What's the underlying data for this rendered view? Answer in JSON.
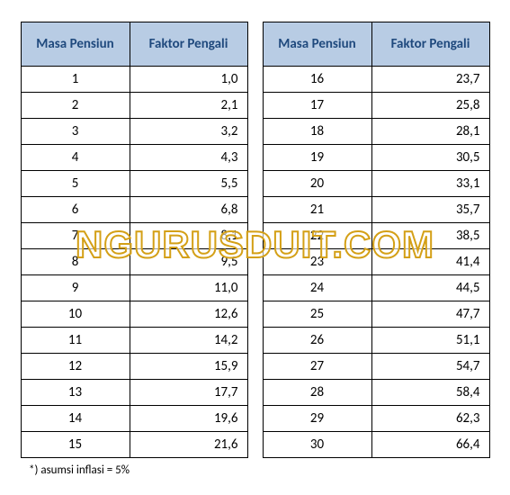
{
  "header": {
    "col1": "Masa Pensiun",
    "col2": "Faktor Pengali"
  },
  "table_left": {
    "rows": [
      {
        "masa": "1",
        "faktor": "1,0"
      },
      {
        "masa": "2",
        "faktor": "2,1"
      },
      {
        "masa": "3",
        "faktor": "3,2"
      },
      {
        "masa": "4",
        "faktor": "4,3"
      },
      {
        "masa": "5",
        "faktor": "5,5"
      },
      {
        "masa": "6",
        "faktor": "6,8"
      },
      {
        "masa": "7",
        "faktor": "8,1"
      },
      {
        "masa": "8",
        "faktor": "9,5"
      },
      {
        "masa": "9",
        "faktor": "11,0"
      },
      {
        "masa": "10",
        "faktor": "12,6"
      },
      {
        "masa": "11",
        "faktor": "14,2"
      },
      {
        "masa": "12",
        "faktor": "15,9"
      },
      {
        "masa": "13",
        "faktor": "17,7"
      },
      {
        "masa": "14",
        "faktor": "19,6"
      },
      {
        "masa": "15",
        "faktor": "21,6"
      }
    ]
  },
  "table_right": {
    "rows": [
      {
        "masa": "16",
        "faktor": "23,7"
      },
      {
        "masa": "17",
        "faktor": "25,8"
      },
      {
        "masa": "18",
        "faktor": "28,1"
      },
      {
        "masa": "19",
        "faktor": "30,5"
      },
      {
        "masa": "20",
        "faktor": "33,1"
      },
      {
        "masa": "21",
        "faktor": "35,7"
      },
      {
        "masa": "22",
        "faktor": "38,5"
      },
      {
        "masa": "23",
        "faktor": "41,4"
      },
      {
        "masa": "24",
        "faktor": "44,5"
      },
      {
        "masa": "25",
        "faktor": "47,7"
      },
      {
        "masa": "26",
        "faktor": "51,1"
      },
      {
        "masa": "27",
        "faktor": "54,7"
      },
      {
        "masa": "28",
        "faktor": "58,4"
      },
      {
        "masa": "29",
        "faktor": "62,3"
      },
      {
        "masa": "30",
        "faktor": "66,4"
      }
    ]
  },
  "footnote": "*) asumsi inflasi = 5%",
  "watermark": "NGURUSDUIT.COM",
  "style": {
    "header_bg": "#b8cce4",
    "header_fg": "#1f497d",
    "border_color": "#000000",
    "watermark_stroke": "#d4a017",
    "watermark_fill": "rgba(255,255,255,0.6)",
    "font_size_cell": 15,
    "font_size_header": 15,
    "font_size_footnote": 13,
    "font_size_watermark": 42
  }
}
